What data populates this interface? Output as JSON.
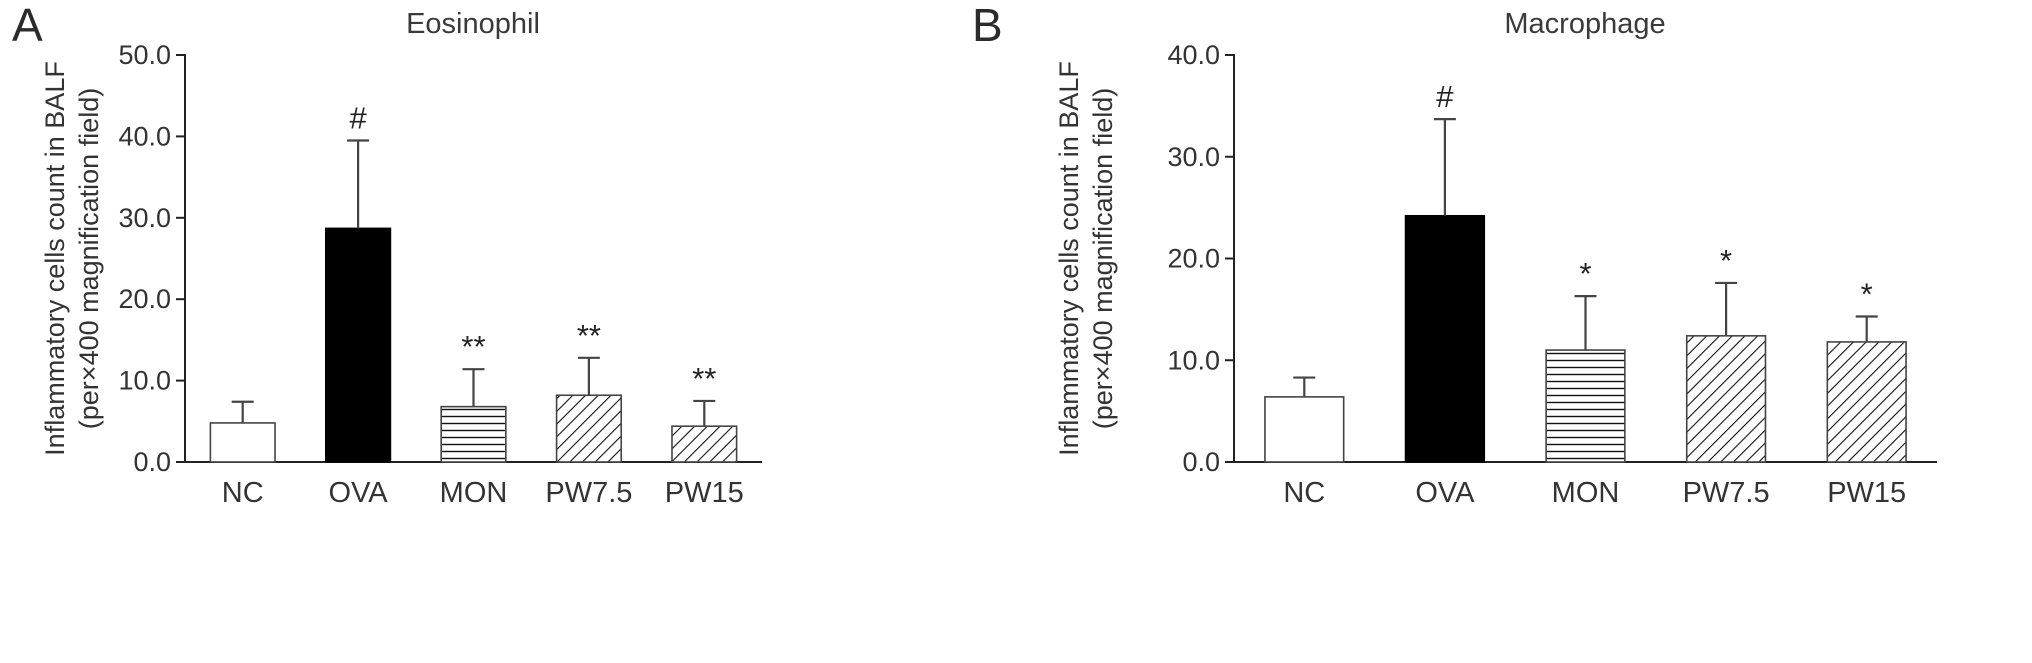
{
  "figure": {
    "background": "#ffffff",
    "text_color": "#333333",
    "axis_color": "#222222",
    "bar_solid_color": "#000000"
  },
  "panels": [
    {
      "letter": "A"
    },
    {
      "letter": "B"
    }
  ],
  "chart_data": [
    {
      "type": "bar",
      "title": "Eosinophil",
      "panel_letter": "A",
      "ylabel_line1": "Inflammatory cells count in BALF",
      "ylabel_line2": "(per×400 magnification field)",
      "xlabel": "",
      "categories": [
        "NC",
        "OVA",
        "MON",
        "PW7.5",
        "PW15"
      ],
      "values": [
        4.8,
        28.7,
        6.8,
        8.2,
        4.4
      ],
      "error_up": [
        2.6,
        10.8,
        4.6,
        4.6,
        3.1
      ],
      "annotations": [
        "",
        "#",
        "**",
        "**",
        "**"
      ],
      "bar_styles": [
        "open",
        "solid",
        "hlines",
        "diagonal",
        "diagonal"
      ],
      "ylim": [
        0,
        50
      ],
      "ytick_step": 10,
      "ytick_labels": [
        "0.0",
        "10.0",
        "20.0",
        "30.0",
        "40.0",
        "50.0"
      ],
      "grid": false,
      "legend": "none"
    },
    {
      "type": "bar",
      "title": "Macrophage",
      "panel_letter": "B",
      "ylabel_line1": "Inflammatory cells count in BALF",
      "ylabel_line2": "(per×400 magnification field)",
      "xlabel": "",
      "categories": [
        "NC",
        "OVA",
        "MON",
        "PW7.5",
        "PW15"
      ],
      "values": [
        6.4,
        24.2,
        11.0,
        12.4,
        11.8
      ],
      "error_up": [
        1.9,
        9.5,
        5.3,
        5.2,
        2.5
      ],
      "annotations": [
        "",
        "#",
        "*",
        "*",
        "*"
      ],
      "bar_styles": [
        "open",
        "solid",
        "hlines",
        "diagonal",
        "diagonal"
      ],
      "ylim": [
        0,
        40
      ],
      "ytick_step": 10,
      "ytick_labels": [
        "0.0",
        "10.0",
        "20.0",
        "30.0",
        "40.0"
      ],
      "grid": false,
      "legend": "none"
    }
  ]
}
